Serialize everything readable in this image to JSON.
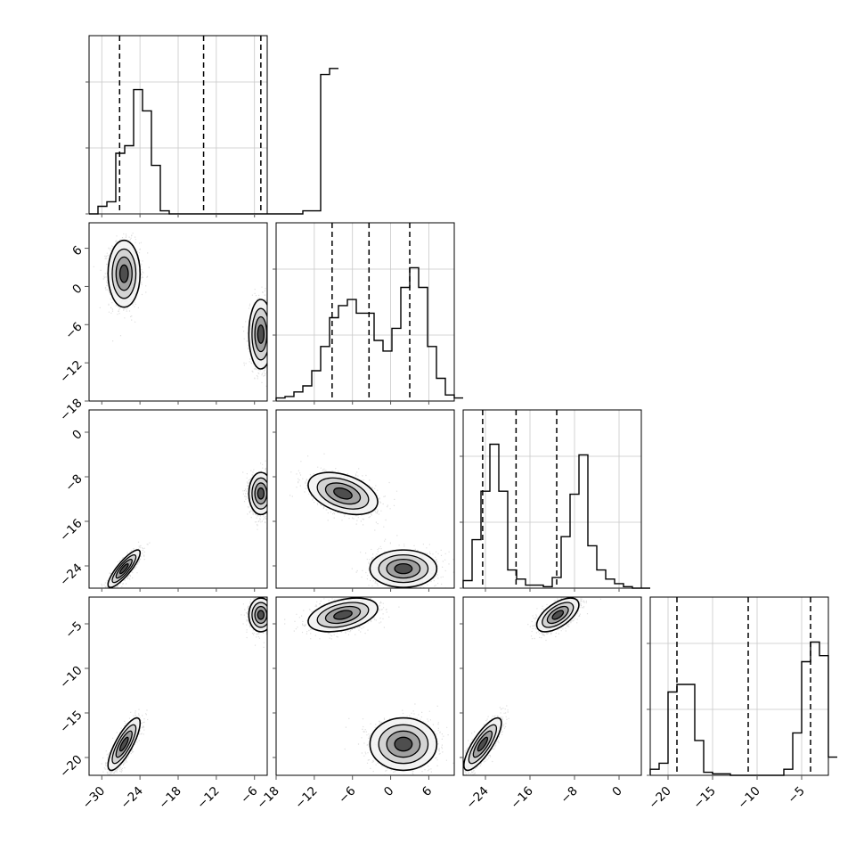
{
  "colors": {
    "frame": "#000000",
    "axis": "#555555",
    "grid": "#c8c8c8",
    "points": "#000000"
  },
  "chart_data": {
    "type": "corner",
    "title": "",
    "labels": [
      "",
      "",
      "",
      ""
    ],
    "ranges": [
      [
        -32,
        -4
      ],
      [
        -18,
        10
      ],
      [
        -28,
        4
      ],
      [
        -22,
        -2
      ]
    ],
    "ticks": [
      [
        -30,
        -24,
        -18,
        -12,
        -6
      ],
      [
        -18,
        -12,
        -6,
        0,
        6
      ],
      [
        0,
        -8,
        -16,
        -24
      ],
      [
        -20,
        -15,
        -10,
        -5
      ]
    ],
    "tick_labels": [
      [
        "−30",
        "−24",
        "−18",
        "−12",
        "−6"
      ],
      [
        "−18",
        "−12",
        "−6",
        "0",
        "6"
      ],
      [
        "0",
        "−8",
        "−16",
        "−24"
      ],
      [
        "−20",
        "−15",
        "−10",
        "−5"
      ]
    ],
    "quantiles": [
      [
        -27.2,
        -14.0,
        -5.0
      ],
      [
        -9.2,
        -3.4,
        3.0
      ],
      [
        -24.5,
        -18.5,
        -11.2
      ],
      [
        -19.0,
        -11.0,
        -4.0
      ]
    ],
    "histograms": [
      {
        "edges_start": -32,
        "bin_width": 1.4,
        "counts": [
          0,
          0.05,
          0.08,
          0.4,
          0.45,
          0.82,
          0.68,
          0.32,
          0.02,
          0,
          0,
          0,
          0,
          0,
          0,
          0,
          0,
          0,
          0,
          0,
          0,
          0,
          0,
          0,
          0.02,
          0.02,
          0.92,
          0.96
        ]
      },
      {
        "edges_start": -18,
        "bin_width": 1.4,
        "counts": [
          0.02,
          0.03,
          0.06,
          0.1,
          0.2,
          0.36,
          0.55,
          0.63,
          0.67,
          0.58,
          0.58,
          0.4,
          0.33,
          0.48,
          0.75,
          0.88,
          0.75,
          0.36,
          0.15,
          0.04,
          0.02
        ]
      },
      {
        "edges_start": -28,
        "bin_width": 1.6,
        "counts": [
          0.05,
          0.32,
          0.64,
          0.95,
          0.64,
          0.12,
          0.06,
          0.02,
          0.02,
          0.01,
          0.07,
          0.34,
          0.62,
          0.88,
          0.28,
          0.12,
          0.06,
          0.03,
          0.01,
          0,
          0
        ]
      },
      {
        "edges_start": -22,
        "bin_width": 1.0,
        "counts": [
          0.04,
          0.08,
          0.55,
          0.6,
          0.6,
          0.23,
          0.02,
          0.01,
          0.01,
          0,
          0,
          0,
          0,
          0,
          0,
          0.04,
          0.28,
          0.75,
          0.88,
          0.79,
          0.12
        ]
      }
    ],
    "modes": [
      {
        "weight": 0.5,
        "mean": [
          -26.5,
          2.0,
          -24.5,
          -18.5
        ],
        "sd": [
          1.2,
          2.5,
          1.6,
          1.4
        ],
        "corr": [
          [
            1,
            0,
            0.85,
            0.8
          ],
          [
            0,
            1,
            0,
            0
          ],
          [
            0.85,
            0,
            1,
            0.8
          ],
          [
            0.8,
            0,
            0.8,
            1
          ]
        ]
      },
      {
        "weight": 0.5,
        "mean": [
          -5.0,
          -7.5,
          -11.0,
          -4.0
        ],
        "sd": [
          0.9,
          2.6,
          1.8,
          0.9
        ],
        "corr": [
          [
            1,
            0,
            0,
            0
          ],
          [
            0,
            1,
            -0.4,
            0.4
          ],
          [
            0,
            -0.4,
            1,
            0.6
          ],
          [
            0,
            0.4,
            0.6,
            1
          ]
        ]
      }
    ]
  }
}
